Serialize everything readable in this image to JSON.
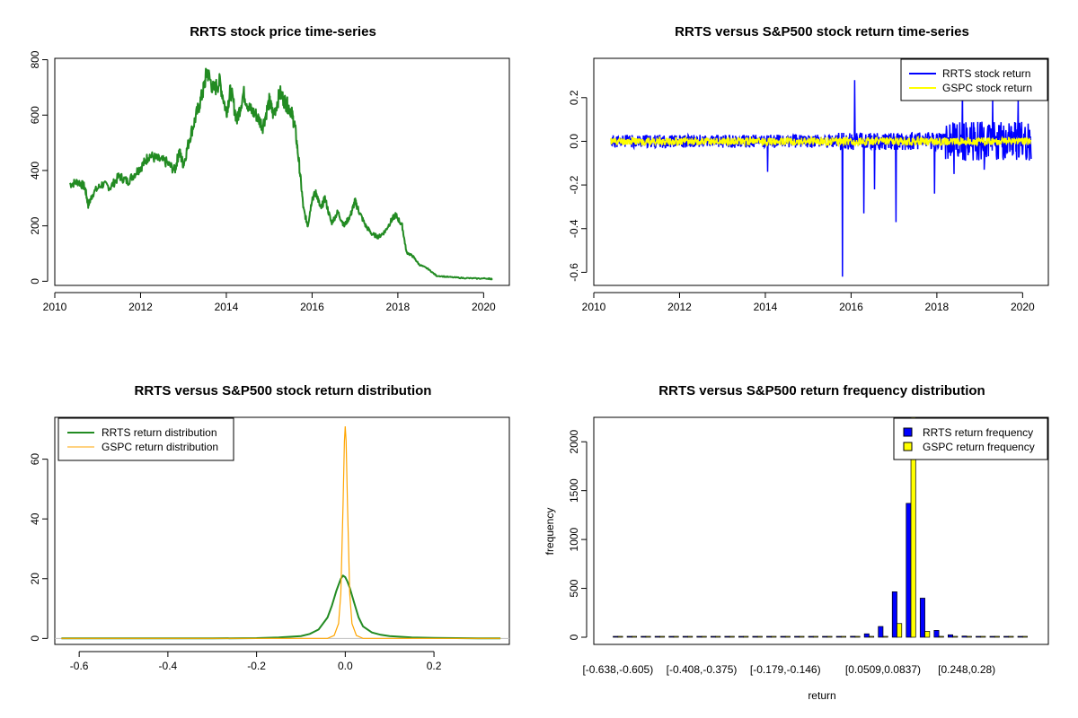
{
  "chart_data": [
    {
      "type": "line",
      "title": "RRTS stock price time-series",
      "xlim": [
        2010,
        2020.6
      ],
      "ylim": [
        -15,
        805
      ],
      "xticks": [
        "2010",
        "2012",
        "2014",
        "2016",
        "2018",
        "2020"
      ],
      "yticks": [
        "0",
        "200",
        "400",
        "600",
        "800"
      ],
      "series": [
        {
          "color": "#228B22",
          "x": [
            2010.35,
            2010.55,
            2010.7,
            2010.78,
            2010.9,
            2011.1,
            2011.3,
            2011.5,
            2011.7,
            2011.9,
            2012.05,
            2012.2,
            2012.4,
            2012.6,
            2012.8,
            2012.9,
            2013.0,
            2013.15,
            2013.3,
            2013.45,
            2013.55,
            2013.7,
            2013.85,
            2014.0,
            2014.1,
            2014.25,
            2014.4,
            2014.55,
            2014.7,
            2014.85,
            2015.0,
            2015.1,
            2015.25,
            2015.4,
            2015.5,
            2015.6,
            2015.7,
            2015.8,
            2015.9,
            2016.0,
            2016.1,
            2016.2,
            2016.3,
            2016.45,
            2016.6,
            2016.75,
            2016.9,
            2017.0,
            2017.1,
            2017.25,
            2017.4,
            2017.55,
            2017.7,
            2017.85,
            2017.95,
            2018.1,
            2018.2,
            2018.35,
            2018.5,
            2018.7,
            2018.9,
            2019.2,
            2019.5,
            2019.8,
            2020.1,
            2020.2
          ],
          "y": [
            350,
            360,
            340,
            275,
            320,
            350,
            340,
            380,
            360,
            395,
            420,
            455,
            440,
            430,
            400,
            470,
            420,
            520,
            600,
            680,
            760,
            690,
            720,
            610,
            690,
            580,
            680,
            620,
            600,
            560,
            650,
            600,
            680,
            640,
            620,
            560,
            420,
            260,
            200,
            300,
            320,
            260,
            300,
            210,
            250,
            200,
            240,
            290,
            250,
            200,
            170,
            160,
            180,
            220,
            240,
            200,
            105,
            90,
            60,
            45,
            20,
            15,
            12,
            10,
            10,
            8
          ]
        }
      ]
    },
    {
      "type": "line",
      "title": "RRTS versus S&P500 stock return time-series",
      "xlim": [
        2010,
        2020.6
      ],
      "ylim": [
        -0.66,
        0.38
      ],
      "xticks": [
        "2010",
        "2012",
        "2014",
        "2016",
        "2018",
        "2020"
      ],
      "yticks": [
        "-0.6",
        "-0.4",
        "-0.2",
        "0.0",
        "0.2"
      ],
      "legend_position": "top-right",
      "series": [
        {
          "name": "RRTS stock return",
          "color": "#0000FF",
          "events": [
            [
              2015.8,
              -0.62
            ],
            [
              2016.08,
              0.28
            ],
            [
              2016.3,
              -0.33
            ],
            [
              2017.05,
              -0.37
            ],
            [
              2016.55,
              -0.22
            ],
            [
              2014.05,
              -0.14
            ],
            [
              2017.95,
              -0.24
            ],
            [
              2018.6,
              0.25
            ],
            [
              2019.3,
              0.2
            ],
            [
              2019.9,
              0.19
            ],
            [
              2018.4,
              -0.15
            ],
            [
              2019.1,
              -0.13
            ]
          ]
        },
        {
          "name": "GSPC stock return",
          "color": "#FFFF00"
        }
      ]
    },
    {
      "type": "line",
      "title": "RRTS versus S&P500 stock return distribution",
      "xlim": [
        -0.655,
        0.37
      ],
      "ylim": [
        -2,
        74
      ],
      "xticks": [
        "-0.6",
        "-0.4",
        "-0.2",
        "0.0",
        "0.2"
      ],
      "yticks": [
        "0",
        "20",
        "40",
        "60"
      ],
      "legend_position": "top-left",
      "series": [
        {
          "name": "RRTS return distribution",
          "color": "#228B22",
          "x": [
            -0.64,
            -0.3,
            -0.2,
            -0.15,
            -0.1,
            -0.08,
            -0.06,
            -0.04,
            -0.03,
            -0.02,
            -0.01,
            -0.005,
            0,
            0.005,
            0.01,
            0.02,
            0.03,
            0.04,
            0.06,
            0.08,
            0.1,
            0.15,
            0.2,
            0.25,
            0.3,
            0.35
          ],
          "y": [
            0,
            0,
            0.1,
            0.3,
            0.8,
            1.5,
            3,
            7,
            11,
            16,
            20,
            21,
            20.5,
            19,
            17,
            12,
            7,
            4,
            2,
            1.2,
            0.8,
            0.3,
            0.2,
            0.1,
            0,
            0
          ]
        },
        {
          "name": "GSPC return distribution",
          "color": "#FFA500",
          "x": [
            -0.64,
            -0.04,
            -0.025,
            -0.015,
            -0.01,
            -0.005,
            -0.002,
            0,
            0.002,
            0.005,
            0.01,
            0.015,
            0.025,
            0.04,
            0.35
          ],
          "y": [
            0,
            0,
            1,
            5,
            15,
            45,
            66,
            71,
            66,
            45,
            15,
            5,
            1,
            0,
            0
          ]
        }
      ]
    },
    {
      "type": "bar",
      "title": "RRTS versus S&P500 return frequency distribution",
      "xlabel": "return",
      "ylabel": "frequency",
      "ylim": [
        0,
        2250
      ],
      "yticks": [
        "0",
        "500",
        "1000",
        "1500",
        "2000"
      ],
      "legend_position": "top-right",
      "tick_labels": [
        "[-0.638,-0.605)",
        "[-0.408,-0.375)",
        "[-0.179,-0.146)",
        "[0.0509,0.0837)",
        "[0.248,0.28)"
      ],
      "series": [
        {
          "name": "RRTS return frequency",
          "color": "#0000FF",
          "values": [
            1,
            0,
            0,
            0,
            0,
            0,
            0,
            1,
            0,
            0,
            0,
            0,
            0,
            0,
            2,
            3,
            5,
            10,
            35,
            110,
            465,
            1370,
            400,
            70,
            25,
            12,
            8,
            5,
            3,
            2
          ]
        },
        {
          "name": "GSPC return frequency",
          "color": "#FFFF00",
          "values": [
            0,
            0,
            0,
            0,
            0,
            0,
            0,
            0,
            0,
            0,
            0,
            0,
            0,
            0,
            0,
            0,
            0,
            0,
            0,
            0,
            140,
            2250,
            60,
            0,
            0,
            0,
            0,
            0,
            0,
            0
          ]
        }
      ]
    }
  ]
}
